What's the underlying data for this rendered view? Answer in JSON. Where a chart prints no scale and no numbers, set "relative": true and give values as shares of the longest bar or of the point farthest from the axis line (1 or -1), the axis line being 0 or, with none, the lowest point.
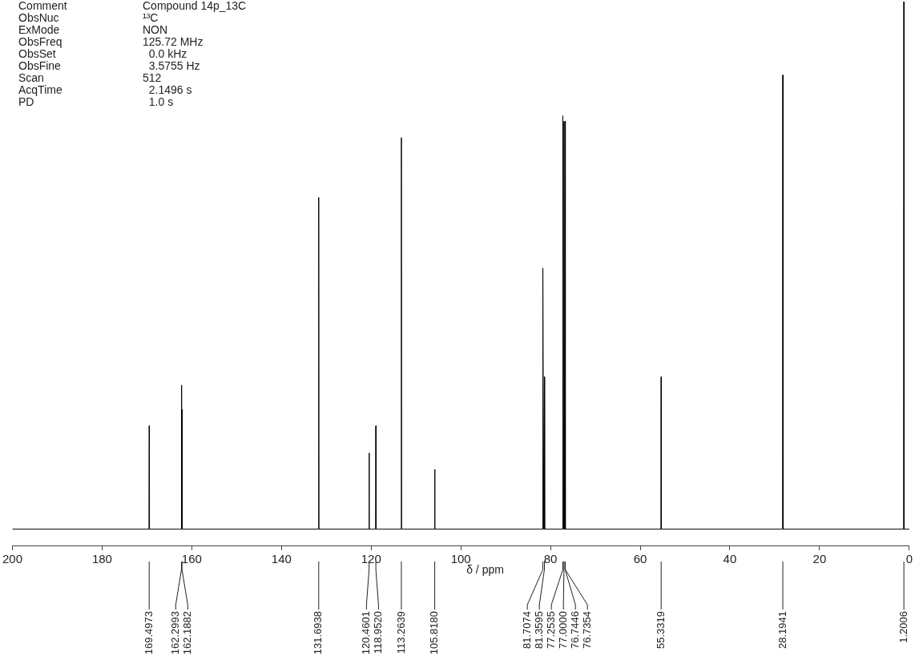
{
  "chart_data": {
    "type": "line",
    "relative": true,
    "xlabel": "δ / ppm",
    "xlim": [
      200,
      0
    ],
    "xticks": [
      200,
      180,
      160,
      140,
      120,
      100,
      80,
      60,
      40,
      20,
      0
    ],
    "grid": false,
    "legend": false,
    "marker": "none",
    "line_style": "solid",
    "x": [
      200,
      169.55,
      169.4973,
      169.45,
      162.35,
      162.2993,
      162.24,
      162.1882,
      162.14,
      131.75,
      131.6938,
      131.64,
      120.51,
      120.4601,
      120.41,
      119.0,
      118.952,
      118.9,
      113.31,
      113.2639,
      113.21,
      105.87,
      105.818,
      105.77,
      81.76,
      81.7074,
      81.55,
      81.3595,
      81.31,
      77.3,
      77.2535,
      77.1,
      77.0,
      76.87,
      76.7446,
      76.69,
      55.38,
      55.3319,
      55.28,
      28.24,
      28.1941,
      28.14,
      1.25,
      1.2006,
      1.15,
      0
    ],
    "series": [
      {
        "color": "#000000",
        "values": [
          0.03,
          0.03,
          0.22,
          0.03,
          0.03,
          0.295,
          0.03,
          0.25,
          0.03,
          0.03,
          0.64,
          0.03,
          0.03,
          0.17,
          0.03,
          0.03,
          0.22,
          0.03,
          0.03,
          0.75,
          0.03,
          0.03,
          0.14,
          0.03,
          0.03,
          0.51,
          0.03,
          0.31,
          0.03,
          0.03,
          0.79,
          0.03,
          0.78,
          0.03,
          0.78,
          0.03,
          0.03,
          0.31,
          0.03,
          0.03,
          0.865,
          0.03,
          0.03,
          1,
          0.03,
          0.03
        ]
      }
    ],
    "annotations": [
      "Comment",
      "Compound 14p_13C",
      "ObsNuc",
      "¹³C",
      "ExMode",
      "NON",
      "ObsFreq",
      "125.72 MHz",
      "ObsSet",
      "  0.0 kHz",
      "ObsFine",
      "  3.5755 Hz",
      "Scan",
      "512",
      "AcqTime",
      "  2.1496 s",
      "PD",
      "  1.0 s",
      {
        "text": "169.4973",
        "x": 169.4973
      },
      {
        "text": "162.2993",
        "x": 162.2993
      },
      {
        "text": "162.1882",
        "x": 162.1882
      },
      {
        "text": "131.6938",
        "x": 131.6938
      },
      {
        "text": "120.4601",
        "x": 120.4601
      },
      {
        "text": "118.9520",
        "x": 118.952
      },
      {
        "text": "113.2639",
        "x": 113.2639
      },
      {
        "text": "105.8180",
        "x": 105.818
      },
      {
        "text": "81.7074",
        "x": 81.7074
      },
      {
        "text": "81.3595",
        "x": 81.3595
      },
      {
        "text": "77.2535",
        "x": 77.2535
      },
      {
        "text": "77.0000",
        "x": 77.0
      },
      {
        "text": "76.7446",
        "x": 76.7446
      },
      {
        "text": "76.7354",
        "x": 76.7354
      },
      {
        "text": "55.3319",
        "x": 55.3319
      },
      {
        "text": "28.1941",
        "x": 28.1941
      },
      {
        "text": "1.2006",
        "x": 1.2006
      }
    ]
  }
}
